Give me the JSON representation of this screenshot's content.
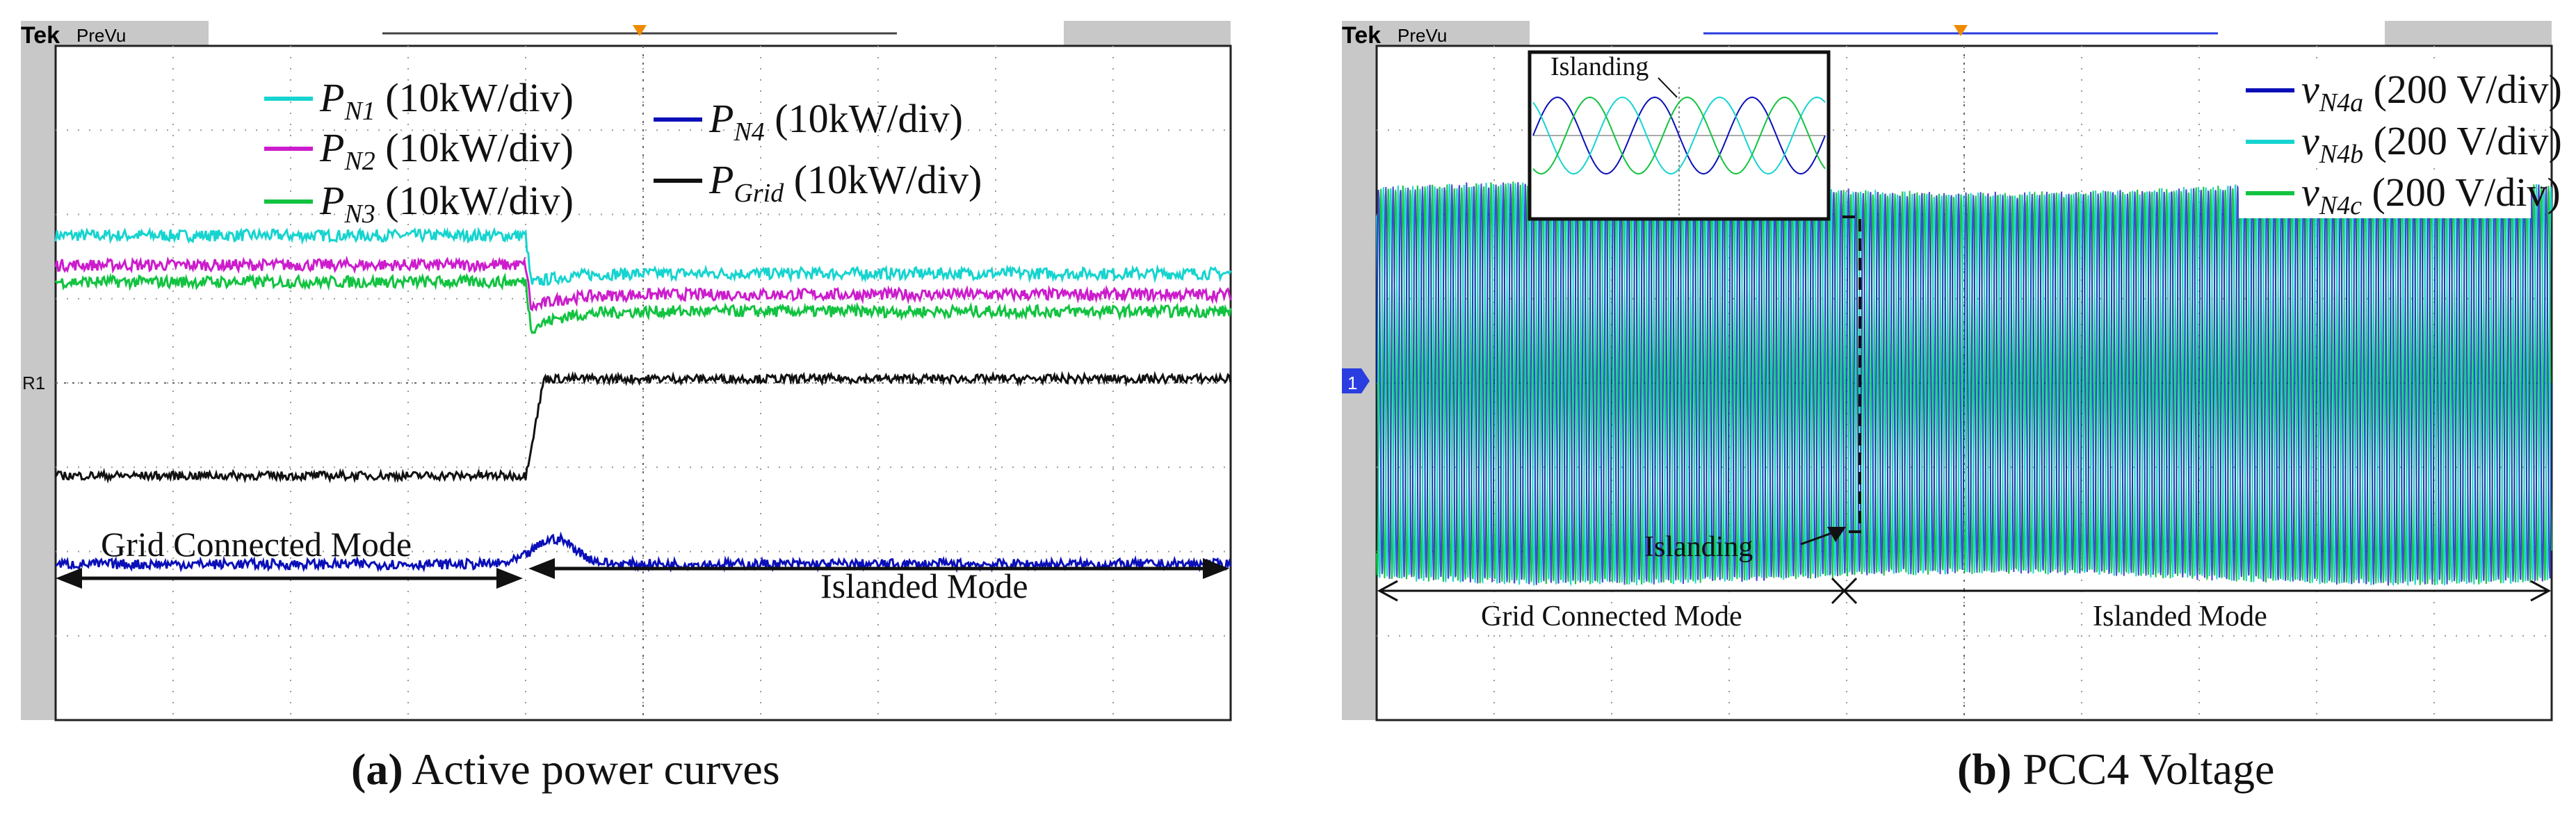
{
  "chart_data": [
    {
      "type": "line",
      "panel_label": "(a)",
      "caption": "Active power curves",
      "header": {
        "brand": "Tek",
        "mode": "PreVu"
      },
      "x": [
        0,
        1,
        2,
        3,
        4,
        5,
        6,
        7,
        8,
        9,
        10
      ],
      "xlim": [
        0,
        10
      ],
      "ylim": [
        -4,
        4
      ],
      "grid": true,
      "transition_x": 4,
      "ground_marker": "R1",
      "legend": [
        {
          "name": "P",
          "sub": "N1",
          "unit": "(10kW/div)",
          "color": "#16d4cf"
        },
        {
          "name": "P",
          "sub": "N2",
          "unit": "(10kW/div)",
          "color": "#cc1ccc"
        },
        {
          "name": "P",
          "sub": "N3",
          "unit": "(10kW/div)",
          "color": "#12c340"
        },
        {
          "name": "P",
          "sub": "N4",
          "unit": "(10kW/div)",
          "color": "#0a0fb8"
        },
        {
          "name": "P",
          "sub": "Grid",
          "unit": "(10kW/div)",
          "color": "#111111"
        }
      ],
      "series": [
        {
          "name": "PN1",
          "color": "#16d4cf",
          "before": 1.75,
          "dip": 1.15,
          "after": 1.3,
          "noise": 0.07
        },
        {
          "name": "PN2",
          "color": "#cc1ccc",
          "before": 1.4,
          "dip": 0.85,
          "after": 1.05,
          "noise": 0.07
        },
        {
          "name": "PN3",
          "color": "#12c340",
          "before": 1.2,
          "dip": 0.6,
          "after": 0.85,
          "noise": 0.07
        },
        {
          "name": "PGrid",
          "color": "#111111",
          "before": -1.1,
          "dip": 0.0,
          "after": 0.05,
          "noise": 0.05
        },
        {
          "name": "PN4",
          "color": "#0a0fb8",
          "before": -2.15,
          "bump": -1.85,
          "after": -2.15,
          "noise": 0.06
        }
      ],
      "annotations": {
        "grid_connected": "Grid Connected Mode",
        "islanded": "Islanded Mode"
      }
    },
    {
      "type": "line",
      "panel_label": "(b)",
      "caption": "PCC4 Voltage",
      "header": {
        "brand": "Tek",
        "mode": "PreVu"
      },
      "x": [
        0,
        1,
        2,
        3,
        4,
        5,
        6,
        7,
        8,
        9,
        10
      ],
      "xlim": [
        0,
        10
      ],
      "ylim": [
        -4,
        4
      ],
      "grid": true,
      "transition_x": 4,
      "amplitude": 2.3,
      "ground_marker": "1",
      "legend": [
        {
          "name": "v",
          "sub": "N4a",
          "unit": "(200 V/div)",
          "color": "#0a0fb8"
        },
        {
          "name": "v",
          "sub": "N4b",
          "unit": "(200 V/div)",
          "color": "#16d4cf"
        },
        {
          "name": "v",
          "sub": "N4c",
          "unit": "(200 V/div)",
          "color": "#12c340"
        }
      ],
      "inset_label": "Islanding",
      "annotations": {
        "islanding": "Islanding",
        "grid_connected": "Grid Connected Mode",
        "islanded": "Islanded Mode"
      }
    }
  ]
}
